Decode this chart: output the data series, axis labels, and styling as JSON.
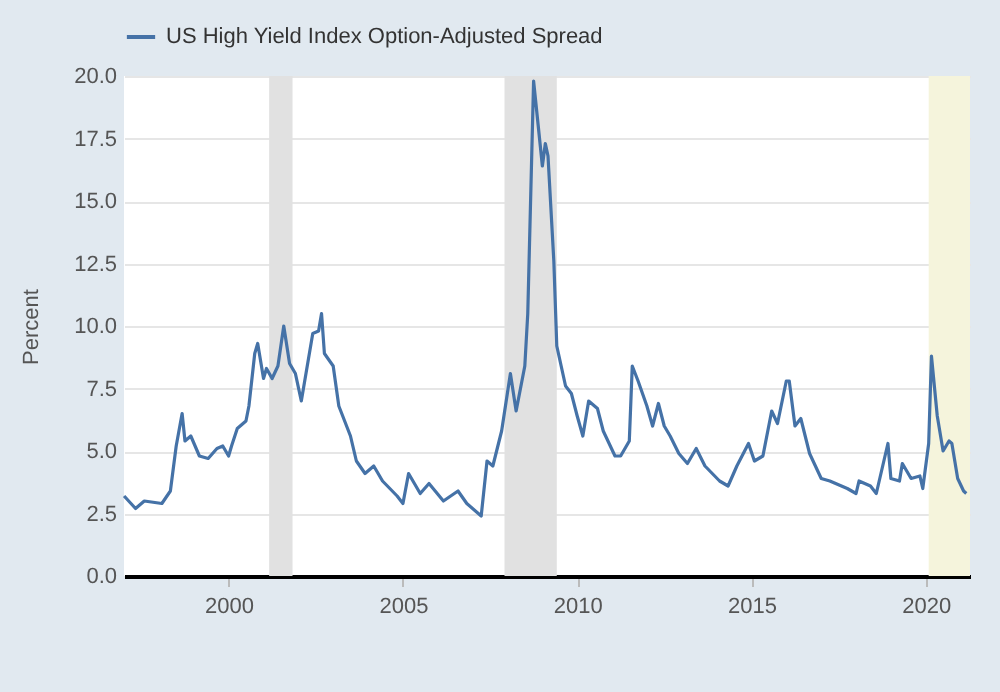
{
  "chart_data": {
    "type": "line",
    "ylabel": "Percent",
    "legend": "top",
    "grid": "y",
    "xlim": [
      "1996-12-31",
      "2021-04-09"
    ],
    "xticks": [
      "2000",
      "2005",
      "2010",
      "2015",
      "2020"
    ],
    "ylim": [
      0,
      20
    ],
    "yticks": [
      {
        "value": 0,
        "label": "0.0"
      },
      2.5,
      {
        "value": 5,
        "label": "5.0"
      },
      7.5,
      {
        "value": 10,
        "label": "10.0"
      },
      12.5,
      {
        "value": 15,
        "label": "15.0"
      },
      17.5,
      {
        "value": 20,
        "label": "20.0"
      }
    ],
    "bands": [
      {
        "axis": "x",
        "from": "2001-03-01",
        "to": "2001-11-01",
        "color": "#e1e1e1"
      },
      {
        "axis": "x",
        "from": "2007-12-01",
        "to": "2009-06-01",
        "color": "#e1e1e1"
      },
      {
        "axis": "x",
        "from": "2020-02-01",
        "to": "2021-04-09",
        "color": "#f5f4dc"
      }
    ],
    "x": [
      "1997-01",
      "1997-05",
      "1997-08",
      "1998-02",
      "1998-05",
      "1998-07",
      "1998-09",
      "1998-10",
      "1998-12",
      "1999-03",
      "1999-06",
      "1999-09",
      "1999-11",
      "2000-01",
      "2000-02",
      "2000-04",
      "2000-07",
      "2000-08",
      "2000-10",
      "2000-11",
      "2001-01",
      "2001-02",
      "2001-04",
      "2001-06",
      "2001-08",
      "2001-10",
      "2001-12",
      "2002-02",
      "2002-06",
      "2002-08",
      "2002-09",
      "2002-10",
      "2003-01",
      "2003-03",
      "2003-07",
      "2003-09",
      "2003-12",
      "2004-03",
      "2004-06",
      "2004-11",
      "2005-01",
      "2005-03",
      "2005-07",
      "2005-10",
      "2006-03",
      "2006-08",
      "2006-11",
      "2007-04",
      "2007-06",
      "2007-08",
      "2007-11",
      "2008-02",
      "2008-04",
      "2008-07",
      "2008-08",
      "2008-10",
      "2009-01",
      "2009-02",
      "2009-03",
      "2009-05",
      "2009-06",
      "2009-09",
      "2009-11",
      "2010-01",
      "2010-03",
      "2010-05",
      "2010-08",
      "2010-10",
      "2011-02",
      "2011-04",
      "2011-07",
      "2011-08",
      "2011-10",
      "2012-01",
      "2012-03",
      "2012-05",
      "2012-07",
      "2012-09",
      "2012-12",
      "2013-03",
      "2013-06",
      "2013-09",
      "2014-02",
      "2014-05",
      "2014-08",
      "2014-12",
      "2015-02",
      "2015-05",
      "2015-08",
      "2015-10",
      "2016-01",
      "2016-02",
      "2016-04",
      "2016-06",
      "2016-09",
      "2017-01",
      "2017-04",
      "2017-10",
      "2018-01",
      "2018-02",
      "2018-06",
      "2018-08",
      "2018-12",
      "2019-01",
      "2019-04",
      "2019-05",
      "2019-08",
      "2019-11",
      "2019-12",
      "2020-02",
      "2020-03",
      "2020-05",
      "2020-07",
      "2020-09",
      "2020-10",
      "2020-12",
      "2021-02",
      "2021-03"
    ],
    "series": [
      {
        "name": "US High Yield Index Option-Adjusted Spread",
        "color": "#4572a7",
        "values": [
          3.2,
          2.7,
          3.0,
          2.9,
          3.4,
          5.2,
          6.5,
          5.4,
          5.6,
          4.8,
          4.7,
          5.1,
          5.2,
          4.8,
          5.2,
          5.9,
          6.2,
          6.8,
          8.9,
          9.3,
          7.9,
          8.3,
          7.9,
          8.4,
          10.0,
          8.5,
          8.1,
          7.0,
          9.7,
          9.8,
          10.5,
          8.9,
          8.4,
          6.8,
          5.6,
          4.6,
          4.1,
          4.4,
          3.8,
          3.2,
          2.9,
          4.1,
          3.3,
          3.7,
          3.0,
          3.4,
          2.9,
          2.4,
          4.6,
          4.4,
          5.8,
          8.1,
          6.6,
          8.4,
          10.5,
          19.8,
          16.4,
          17.3,
          16.8,
          12.6,
          9.2,
          7.6,
          7.3,
          6.4,
          5.6,
          7.0,
          6.7,
          5.8,
          4.8,
          4.8,
          5.4,
          8.4,
          7.8,
          6.8,
          6.0,
          6.9,
          6.0,
          5.6,
          4.9,
          4.5,
          5.1,
          4.4,
          3.8,
          3.6,
          4.4,
          5.3,
          4.6,
          4.8,
          6.6,
          6.1,
          7.8,
          7.8,
          6.0,
          6.3,
          4.9,
          3.9,
          3.8,
          3.5,
          3.3,
          3.8,
          3.6,
          3.3,
          5.3,
          3.9,
          3.8,
          4.5,
          3.9,
          4.0,
          3.5,
          5.3,
          8.8,
          6.4,
          5.0,
          5.4,
          5.3,
          3.9,
          3.4,
          3.3
        ]
      }
    ]
  }
}
